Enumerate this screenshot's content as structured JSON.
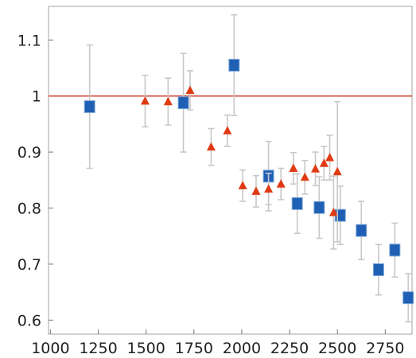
{
  "chart_data": {
    "type": "scatter",
    "title": "",
    "xlabel": "",
    "ylabel": "",
    "xlim": [
      990,
      2890
    ],
    "ylim": [
      0.575,
      1.16
    ],
    "x_ticks": [
      1000,
      1250,
      1500,
      1750,
      2000,
      2250,
      2500,
      2750
    ],
    "x_tick_labels": [
      "1000",
      "1250",
      "1500",
      "1750",
      "2000",
      "2250",
      "2500",
      "2750"
    ],
    "y_ticks": [
      0.6,
      0.7,
      0.8,
      0.9,
      1.0,
      1.1
    ],
    "y_tick_labels": [
      "0.6",
      "0.7",
      "0.8",
      "0.9",
      "1",
      "1.1"
    ],
    "grid": false,
    "reference_line": {
      "y": 1.0,
      "color": "#d0483a"
    },
    "series": [
      {
        "marker": "square",
        "color": "#1f5fb4",
        "points": [
          {
            "x": 1205,
            "y": 0.981,
            "err": 0.11
          },
          {
            "x": 1695,
            "y": 0.988,
            "err": 0.088
          },
          {
            "x": 1960,
            "y": 1.055,
            "err": 0.09
          },
          {
            "x": 2140,
            "y": 0.857,
            "err": 0.062
          },
          {
            "x": 2290,
            "y": 0.808,
            "err": 0.053
          },
          {
            "x": 2405,
            "y": 0.801,
            "err": 0.055
          },
          {
            "x": 2515,
            "y": 0.787,
            "err": 0.052
          },
          {
            "x": 2625,
            "y": 0.76,
            "err": 0.052
          },
          {
            "x": 2715,
            "y": 0.69,
            "err": 0.045
          },
          {
            "x": 2800,
            "y": 0.725,
            "err": 0.048
          },
          {
            "x": 2870,
            "y": 0.64,
            "err": 0.043
          }
        ]
      },
      {
        "marker": "triangle",
        "color": "#e03a12",
        "points": [
          {
            "x": 1495,
            "y": 0.991,
            "err": 0.046
          },
          {
            "x": 1615,
            "y": 0.99,
            "err": 0.042
          },
          {
            "x": 1730,
            "y": 1.01,
            "err": 0.035
          },
          {
            "x": 1840,
            "y": 0.909,
            "err": 0.033
          },
          {
            "x": 1925,
            "y": 0.938,
            "err": 0.028
          },
          {
            "x": 2005,
            "y": 0.84,
            "err": 0.028
          },
          {
            "x": 2075,
            "y": 0.83,
            "err": 0.028
          },
          {
            "x": 2140,
            "y": 0.834,
            "err": 0.028
          },
          {
            "x": 2205,
            "y": 0.843,
            "err": 0.028
          },
          {
            "x": 2270,
            "y": 0.871,
            "err": 0.028
          },
          {
            "x": 2330,
            "y": 0.855,
            "err": 0.03
          },
          {
            "x": 2385,
            "y": 0.87,
            "err": 0.03
          },
          {
            "x": 2430,
            "y": 0.88,
            "err": 0.03
          },
          {
            "x": 2460,
            "y": 0.89,
            "err": 0.04
          },
          {
            "x": 2480,
            "y": 0.792,
            "err": 0.065
          },
          {
            "x": 2500,
            "y": 0.865,
            "err": 0.125
          }
        ]
      }
    ]
  }
}
